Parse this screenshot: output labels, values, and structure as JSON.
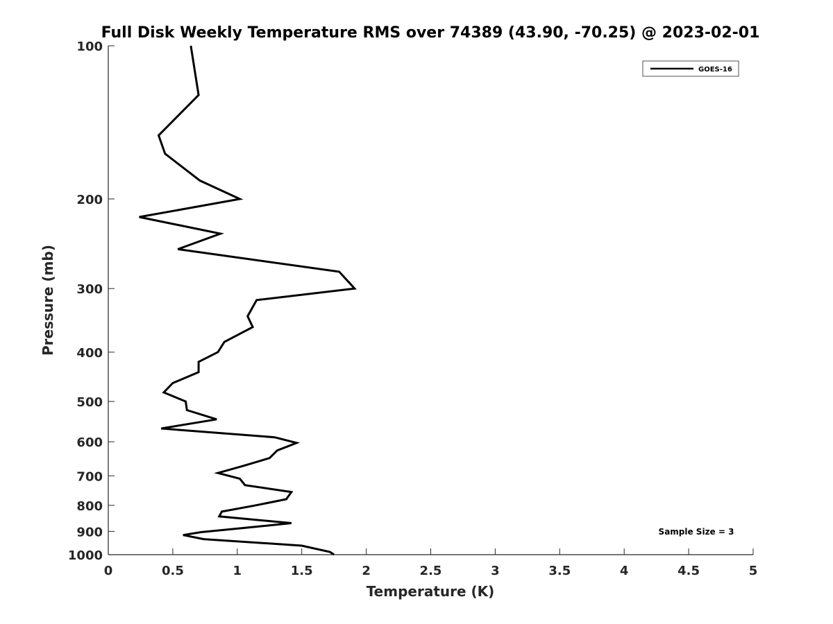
{
  "chart_data": {
    "type": "line",
    "title": "Full Disk Weekly Temperature RMS over 74389 (43.90, -70.25) @ 2023-02-01",
    "xlabel": "Temperature (K)",
    "ylabel": "Pressure (mb)",
    "xlim": [
      0,
      5
    ],
    "ylim": [
      100,
      1000
    ],
    "yscale": "log",
    "y_reversed": true,
    "xticks": [
      0,
      0.5,
      1,
      1.5,
      2,
      2.5,
      3,
      3.5,
      4,
      4.5,
      5
    ],
    "xtick_labels": [
      "0",
      "0.5",
      "1",
      "1.5",
      "2",
      "2.5",
      "3",
      "3.5",
      "4",
      "4.5",
      "5"
    ],
    "yticks": [
      100,
      200,
      300,
      400,
      500,
      600,
      700,
      800,
      900,
      1000
    ],
    "ytick_labels": [
      "100",
      "200",
      "300",
      "400",
      "500",
      "600",
      "700",
      "800",
      "900",
      "1000"
    ],
    "grid": false,
    "legend_position": "top-right",
    "annotation": "Sample Size = 3",
    "series": [
      {
        "name": "GOES-16",
        "color": "#000000",
        "points": [
          [
            0.64,
            100
          ],
          [
            0.7,
            125
          ],
          [
            0.39,
            150
          ],
          [
            0.44,
            163
          ],
          [
            0.71,
            184
          ],
          [
            1.02,
            200
          ],
          [
            0.24,
            217
          ],
          [
            0.87,
            234
          ],
          [
            0.54,
            251
          ],
          [
            1.79,
            278
          ],
          [
            1.91,
            300
          ],
          [
            1.15,
            316
          ],
          [
            1.08,
            340
          ],
          [
            1.12,
            357
          ],
          [
            0.9,
            382
          ],
          [
            0.85,
            400
          ],
          [
            0.7,
            418
          ],
          [
            0.7,
            438
          ],
          [
            0.5,
            460
          ],
          [
            0.43,
            480
          ],
          [
            0.6,
            500
          ],
          [
            0.61,
            520
          ],
          [
            0.84,
            542
          ],
          [
            0.41,
            565
          ],
          [
            1.29,
            588
          ],
          [
            1.46,
            603
          ],
          [
            1.31,
            624
          ],
          [
            1.25,
            646
          ],
          [
            1.04,
            670
          ],
          [
            0.85,
            691
          ],
          [
            1.02,
            709
          ],
          [
            1.06,
            730
          ],
          [
            1.42,
            753
          ],
          [
            1.38,
            778
          ],
          [
            1.13,
            801
          ],
          [
            0.88,
            823
          ],
          [
            0.86,
            841
          ],
          [
            1.42,
            867
          ],
          [
            1.17,
            880
          ],
          [
            0.72,
            903
          ],
          [
            0.58,
            915
          ],
          [
            0.74,
            932
          ],
          [
            1.5,
            960
          ],
          [
            1.72,
            988
          ],
          [
            1.75,
            1000
          ]
        ]
      }
    ]
  }
}
